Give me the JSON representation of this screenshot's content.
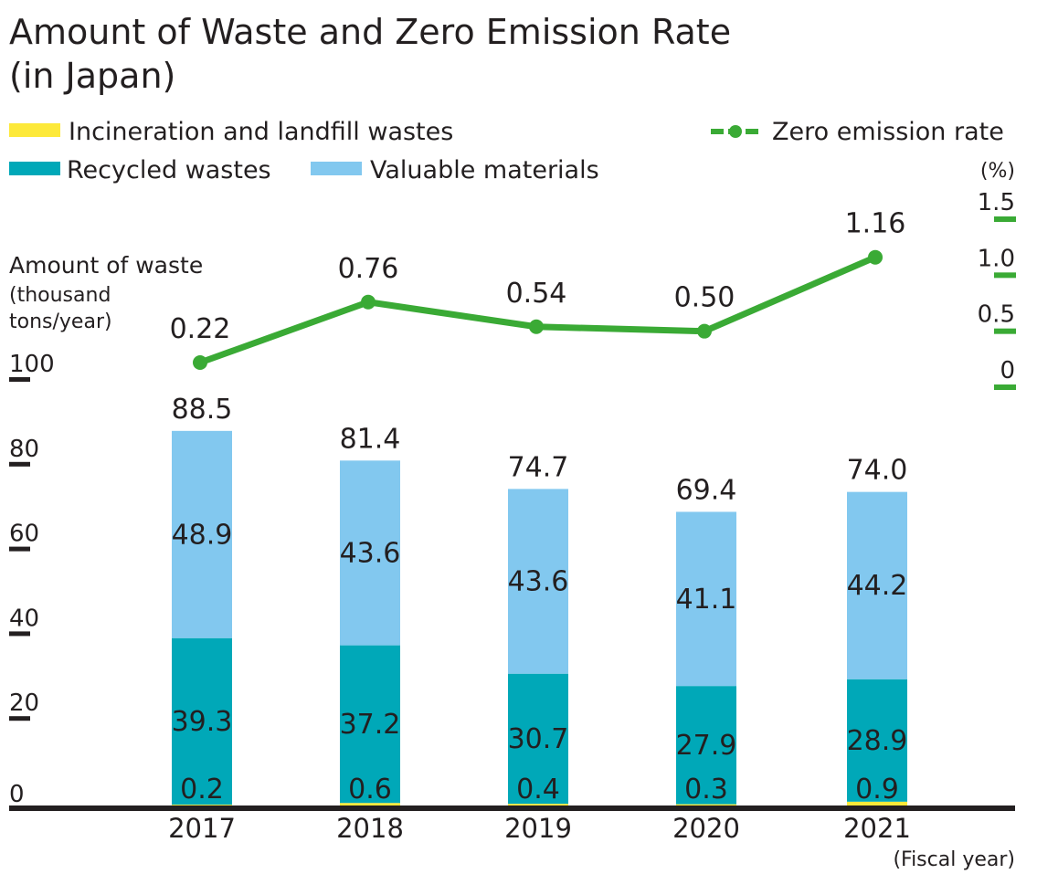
{
  "chart_data": {
    "type": "bar",
    "title_line1": "Amount of Waste and Zero Emission Rate",
    "title_line2": "(in Japan)",
    "categories": [
      "2017",
      "2018",
      "2019",
      "2020",
      "2021"
    ],
    "series": [
      {
        "name": "Incineration and landfill wastes",
        "color": "#fde93a",
        "values": [
          0.2,
          0.6,
          0.4,
          0.3,
          0.9
        ]
      },
      {
        "name": "Recycled wastes",
        "color": "#00a8b8",
        "values": [
          39.3,
          37.2,
          30.7,
          27.9,
          28.9
        ]
      },
      {
        "name": "Valuable materials",
        "color": "#82c8ef",
        "values": [
          48.9,
          43.6,
          43.6,
          41.1,
          44.2
        ]
      }
    ],
    "totals": [
      "88.5",
      "81.4",
      "74.7",
      "69.4",
      "74.0"
    ],
    "line_series": {
      "name": "Zero emission rate",
      "color": "#3aaa35",
      "values": [
        0.22,
        0.76,
        0.54,
        0.5,
        1.16
      ],
      "labels": [
        "0.22",
        "0.76",
        "0.54",
        "0.50",
        "1.16"
      ]
    },
    "y_left": {
      "label": "Amount of waste",
      "unit_line1": "(thousand",
      "unit_line2": "tons/year)",
      "ticks": [
        "0",
        "20",
        "40",
        "60",
        "80",
        "100"
      ],
      "ylim": [
        0,
        100
      ]
    },
    "y_right": {
      "unit": "(%)",
      "ticks": [
        "0",
        "0.5",
        "1.0",
        "1.5"
      ],
      "ylim": [
        0,
        1.5
      ]
    },
    "xlabel": "(Fiscal year)",
    "grid": false,
    "legend_position": "top"
  }
}
